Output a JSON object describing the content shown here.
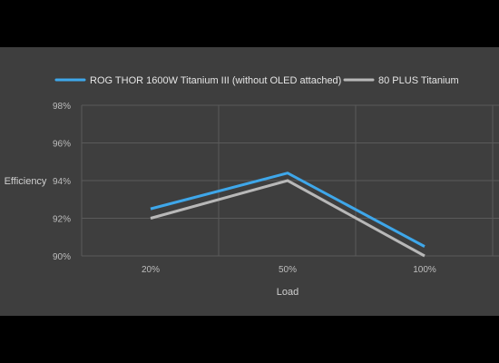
{
  "colors": {
    "page_background": "#000000",
    "chart_background": "#3e3e3e",
    "grid": "#5a5a5a",
    "rog_series": "#3ea7ea",
    "titanium_series": "#b8b8b8"
  },
  "chart_data": {
    "type": "line",
    "title": "",
    "xlabel": "Load",
    "ylabel": "Efficiency",
    "categories": [
      "20%",
      "50%",
      "100%"
    ],
    "ylim": [
      90,
      98
    ],
    "yticks": [
      90,
      92,
      94,
      96,
      98
    ],
    "ytick_labels": [
      "90%",
      "92%",
      "94%",
      "96%",
      "98%"
    ],
    "grid": true,
    "legend_position": "top",
    "series": [
      {
        "name": "ROG THOR 1600W Titanium III (without OLED attached)",
        "color": "#3ea7ea",
        "values": [
          92.5,
          94.4,
          90.5
        ]
      },
      {
        "name": "80 PLUS Titanium",
        "color": "#b8b8b8",
        "values": [
          92.0,
          94.0,
          90.0
        ]
      }
    ]
  }
}
